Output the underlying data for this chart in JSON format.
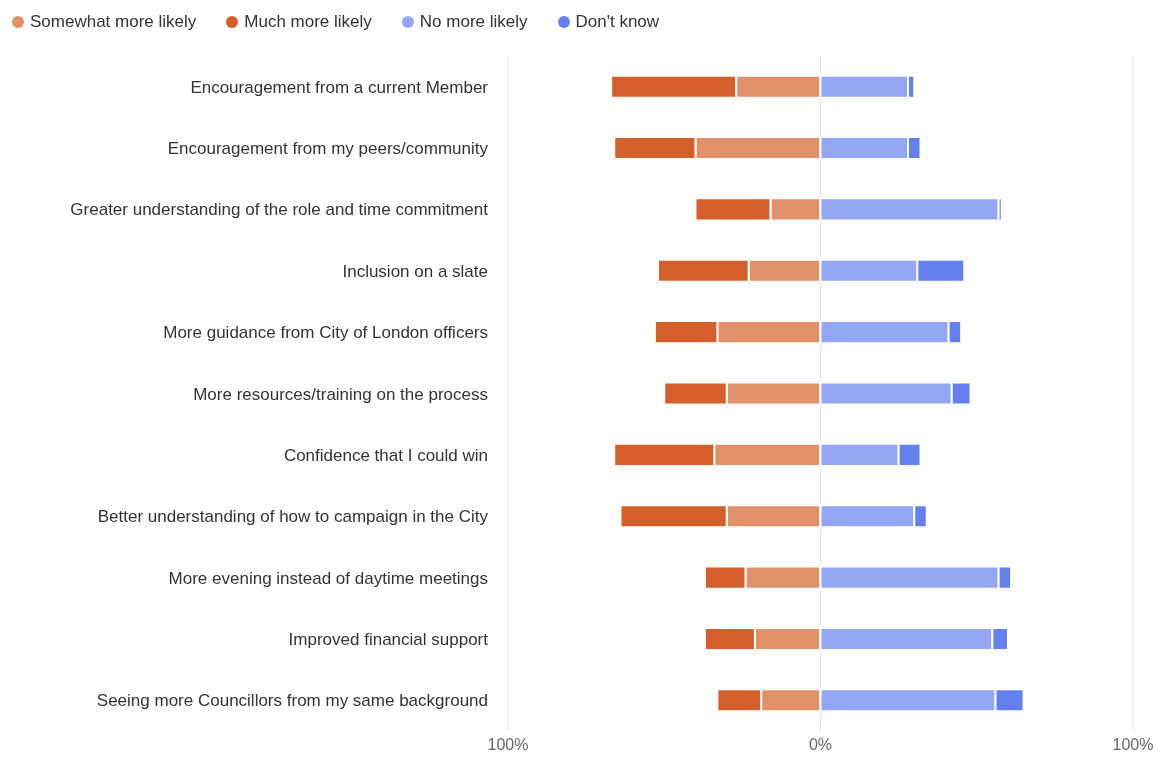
{
  "chart_data": {
    "type": "bar",
    "orientation": "horizontal",
    "stacked": true,
    "categories": [
      "Encouragement from a current Member",
      "Encouragement from my peers/community",
      "Greater understanding of the role and time commitment",
      "Inclusion on a slate",
      "More guidance from City of London officers",
      "More resources/training on the process",
      "Confidence that I could win",
      "Better understanding of how to campaign in the City",
      "More evening instead of daytime meetings",
      "Improved financial support",
      "Seeing more Councillors from my same background"
    ],
    "series": [
      {
        "name": "Somewhat more likely",
        "color": "#e0916a",
        "values": [
          -27,
          -40,
          -16,
          -23,
          -33,
          -30,
          -34,
          -30,
          -24,
          -21,
          -19
        ]
      },
      {
        "name": "Much more likely",
        "color": "#d45f2a",
        "values": [
          -40,
          -26,
          -24,
          -29,
          -20,
          -20,
          -32,
          -34,
          -13,
          -16,
          -14
        ]
      },
      {
        "name": "No more likely",
        "color": "#94a7f5",
        "values": [
          28,
          28,
          57,
          31,
          41,
          42,
          25,
          30,
          57,
          55,
          56
        ]
      },
      {
        "name": "Don't know",
        "color": "#6480f0",
        "values": [
          2,
          4,
          1,
          15,
          4,
          6,
          7,
          4,
          4,
          5,
          9
        ]
      }
    ],
    "xlim": [
      -100,
      100
    ],
    "xticks": [
      {
        "value": -100,
        "label": "100%"
      },
      {
        "value": 0,
        "label": "0%"
      },
      {
        "value": 100,
        "label": "100%"
      }
    ],
    "grid": "x",
    "legend": "top left"
  }
}
